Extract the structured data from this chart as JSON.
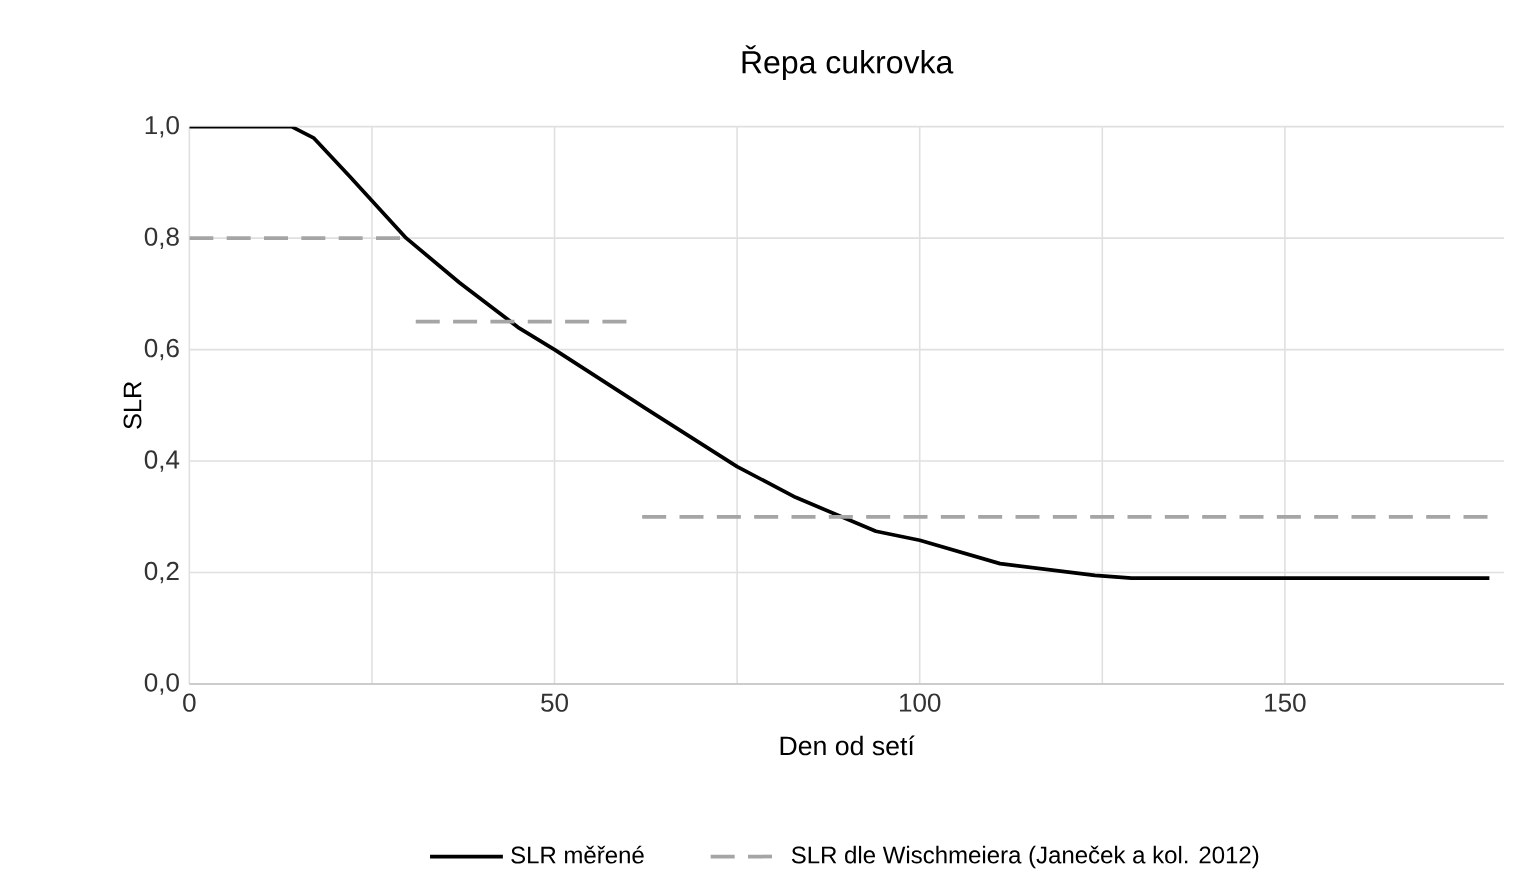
{
  "chart_data": {
    "type": "line",
    "title": "Řepa cukrovka",
    "xlabel": "Den od setí",
    "ylabel": "SLR",
    "xlim": [
      0,
      180
    ],
    "ylim": [
      0,
      1
    ],
    "xticks": [
      0,
      50,
      100,
      150
    ],
    "yticks": [
      {
        "value": 0,
        "label": "0,0"
      },
      {
        "value": 0.2,
        "label": "0,2"
      },
      {
        "value": 0.4,
        "label": "0,4"
      },
      {
        "value": 0.6,
        "label": "0,6"
      },
      {
        "value": 0.8,
        "label": "0,8"
      },
      {
        "value": 1,
        "label": "1,0"
      }
    ],
    "grid": true,
    "legend": "bottom",
    "marker": "none",
    "series": [
      {
        "name": "SLR měřené",
        "color": "#000000",
        "line_style": "solid",
        "x": [
          0,
          14,
          17,
          22,
          29.7,
          37,
          45,
          50,
          63,
          75,
          83,
          94,
          100,
          111,
          124,
          129,
          178
        ],
        "values": [
          1,
          1,
          0.98,
          0.91,
          0.8,
          0.72,
          0.64,
          0.6,
          0.49,
          0.39,
          0.335,
          0.274,
          0.258,
          0.216,
          0.195,
          0.19,
          0.19
        ]
      },
      {
        "name": "SLR dle Wischmeiera (Janeček a kol. 2012)",
        "color": "#a5a5a5",
        "line_style": "dashed",
        "x": [
          0,
          30
        ],
        "values": [
          0.8,
          0.8
        ]
      },
      {
        "color": "#a5a5a5",
        "line_style": "dashed",
        "x": [
          31,
          60
        ],
        "values": [
          0.65,
          0.65
        ]
      },
      {
        "color": "#a5a5a5",
        "line_style": "dashed",
        "x": [
          62,
          178
        ],
        "values": [
          0.3,
          0.3
        ]
      }
    ]
  }
}
